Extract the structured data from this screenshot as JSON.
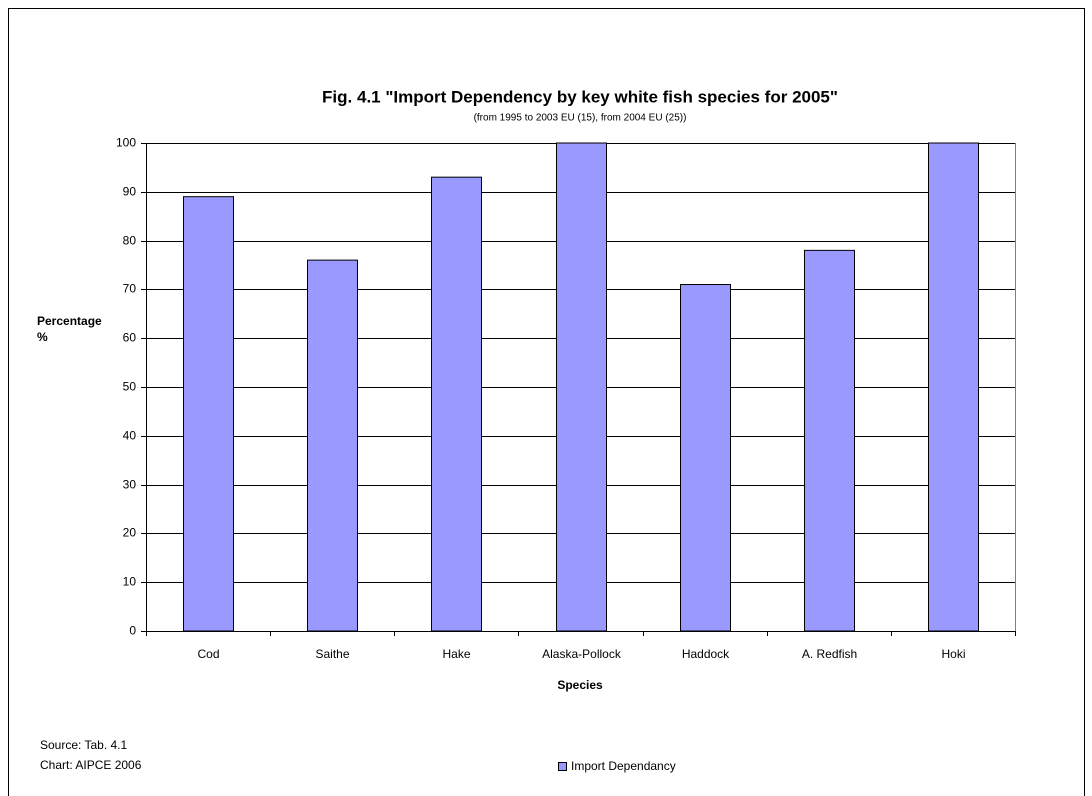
{
  "chart_data": {
    "type": "bar",
    "title": "Fig. 4.1 \"Import Dependency by key white fish species for 2005\"",
    "subtitle": "(from 1995 to 2003 EU (15), from 2004 EU (25))",
    "ylabel": [
      "Percentage",
      "%"
    ],
    "xlabel": "Species",
    "categories": [
      "Cod",
      "Saithe",
      "Hake",
      "Alaska-Pollock",
      "Haddock",
      "A. Redfish",
      "Hoki"
    ],
    "series": [
      {
        "name": "Import Dependancy",
        "color": "#9999ff",
        "values": [
          89,
          76,
          93,
          100,
          71,
          78,
          100
        ]
      }
    ],
    "ylim": [
      0,
      100
    ],
    "yticks": [
      0,
      10,
      20,
      30,
      40,
      50,
      60,
      70,
      80,
      90,
      100
    ],
    "grid": true,
    "legend": "bottom",
    "notes": [
      "Source: Tab. 4.1",
      "Chart: AIPCE 2006"
    ]
  }
}
